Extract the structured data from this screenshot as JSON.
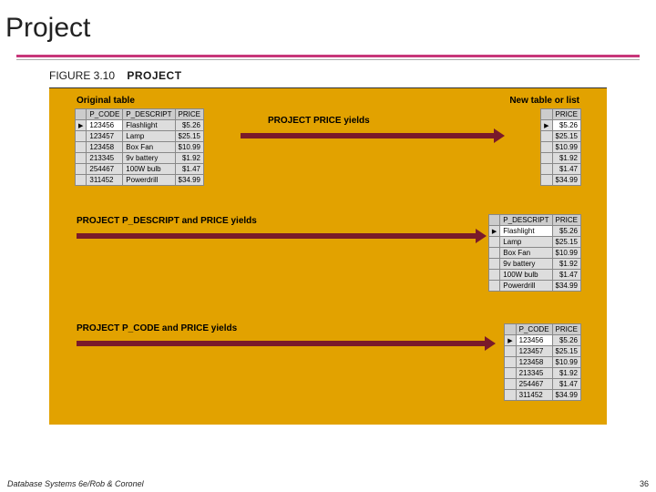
{
  "title": "Project",
  "colors": {
    "accent": "#c8367a",
    "figure_bg": "#e2a200",
    "arrow": "#7a1a2a"
  },
  "figure": {
    "caption_num": "FIGURE 3.10",
    "caption_label": "PROJECT"
  },
  "labels": {
    "original": "Original table",
    "newlist": "New table or list",
    "proj1": "PROJECT PRICE yields",
    "proj2": "PROJECT P_DESCRIPT and PRICE yields",
    "proj3": "PROJECT P_CODE and PRICE yields"
  },
  "original_table": {
    "columns": [
      "P_CODE",
      "P_DESCRIPT",
      "PRICE"
    ],
    "rows": [
      [
        "123456",
        "Flashlight",
        "$5.26"
      ],
      [
        "123457",
        "Lamp",
        "$25.15"
      ],
      [
        "123458",
        "Box Fan",
        "$10.99"
      ],
      [
        "213345",
        "9v battery",
        "$1.92"
      ],
      [
        "254467",
        "100W bulb",
        "$1.47"
      ],
      [
        "311452",
        "Powerdrill",
        "$34.99"
      ]
    ]
  },
  "result_price": {
    "columns": [
      "PRICE"
    ],
    "rows": [
      [
        "$5.26"
      ],
      [
        "$25.15"
      ],
      [
        "$10.99"
      ],
      [
        "$1.92"
      ],
      [
        "$1.47"
      ],
      [
        "$34.99"
      ]
    ]
  },
  "result_descript_price": {
    "columns": [
      "P_DESCRIPT",
      "PRICE"
    ],
    "rows": [
      [
        "Flashlight",
        "$5.26"
      ],
      [
        "Lamp",
        "$25.15"
      ],
      [
        "Box Fan",
        "$10.99"
      ],
      [
        "9v battery",
        "$1.92"
      ],
      [
        "100W bulb",
        "$1.47"
      ],
      [
        "Powerdrill",
        "$34.99"
      ]
    ]
  },
  "result_code_price": {
    "columns": [
      "P_CODE",
      "PRICE"
    ],
    "rows": [
      [
        "123456",
        "$5.26"
      ],
      [
        "123457",
        "$25.15"
      ],
      [
        "123458",
        "$10.99"
      ],
      [
        "213345",
        "$1.92"
      ],
      [
        "254467",
        "$1.47"
      ],
      [
        "311452",
        "$34.99"
      ]
    ]
  },
  "footer": {
    "credit": "Database Systems 6e/Rob & Coronel",
    "page": "36"
  }
}
